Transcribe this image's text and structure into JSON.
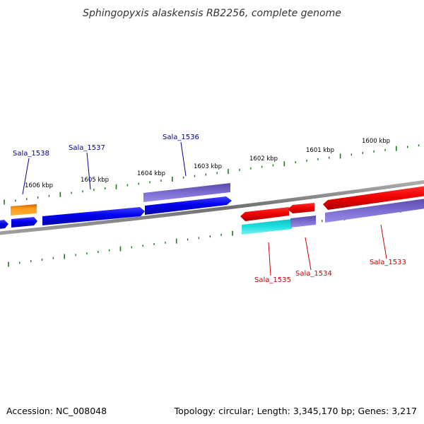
{
  "title": "Sphingopyxis alaskensis RB2256, complete genome",
  "footer": {
    "accession": "Accession: NC_008048",
    "summary": "Topology: circular; Length: 3,345,170 bp; Genes: 3,217"
  },
  "colors": {
    "forward_label": "#00008b",
    "reverse_label": "#cc0000",
    "backbone": "#808080",
    "ticks": "#1a7a1a"
  },
  "kbp_markers": [
    {
      "label": "1606 kbp"
    },
    {
      "label": "1605 kbp"
    },
    {
      "label": "1604 kbp"
    },
    {
      "label": "1603 kbp"
    },
    {
      "label": "1602 kbp"
    },
    {
      "label": "1601 kbp"
    },
    {
      "label": "1600 kbp"
    }
  ],
  "genes": [
    {
      "name": "Sala_1538",
      "strand": "forward",
      "color": "orange"
    },
    {
      "name": "Sala_1537",
      "strand": "forward",
      "color": "blue"
    },
    {
      "name": "Sala_1536",
      "strand": "forward",
      "color": "purple"
    },
    {
      "name": "Sala_1535",
      "strand": "reverse",
      "color": "cyan"
    },
    {
      "name": "Sala_1534",
      "strand": "reverse",
      "color": "purple"
    },
    {
      "name": "Sala_1533",
      "strand": "reverse",
      "color": "red"
    }
  ]
}
